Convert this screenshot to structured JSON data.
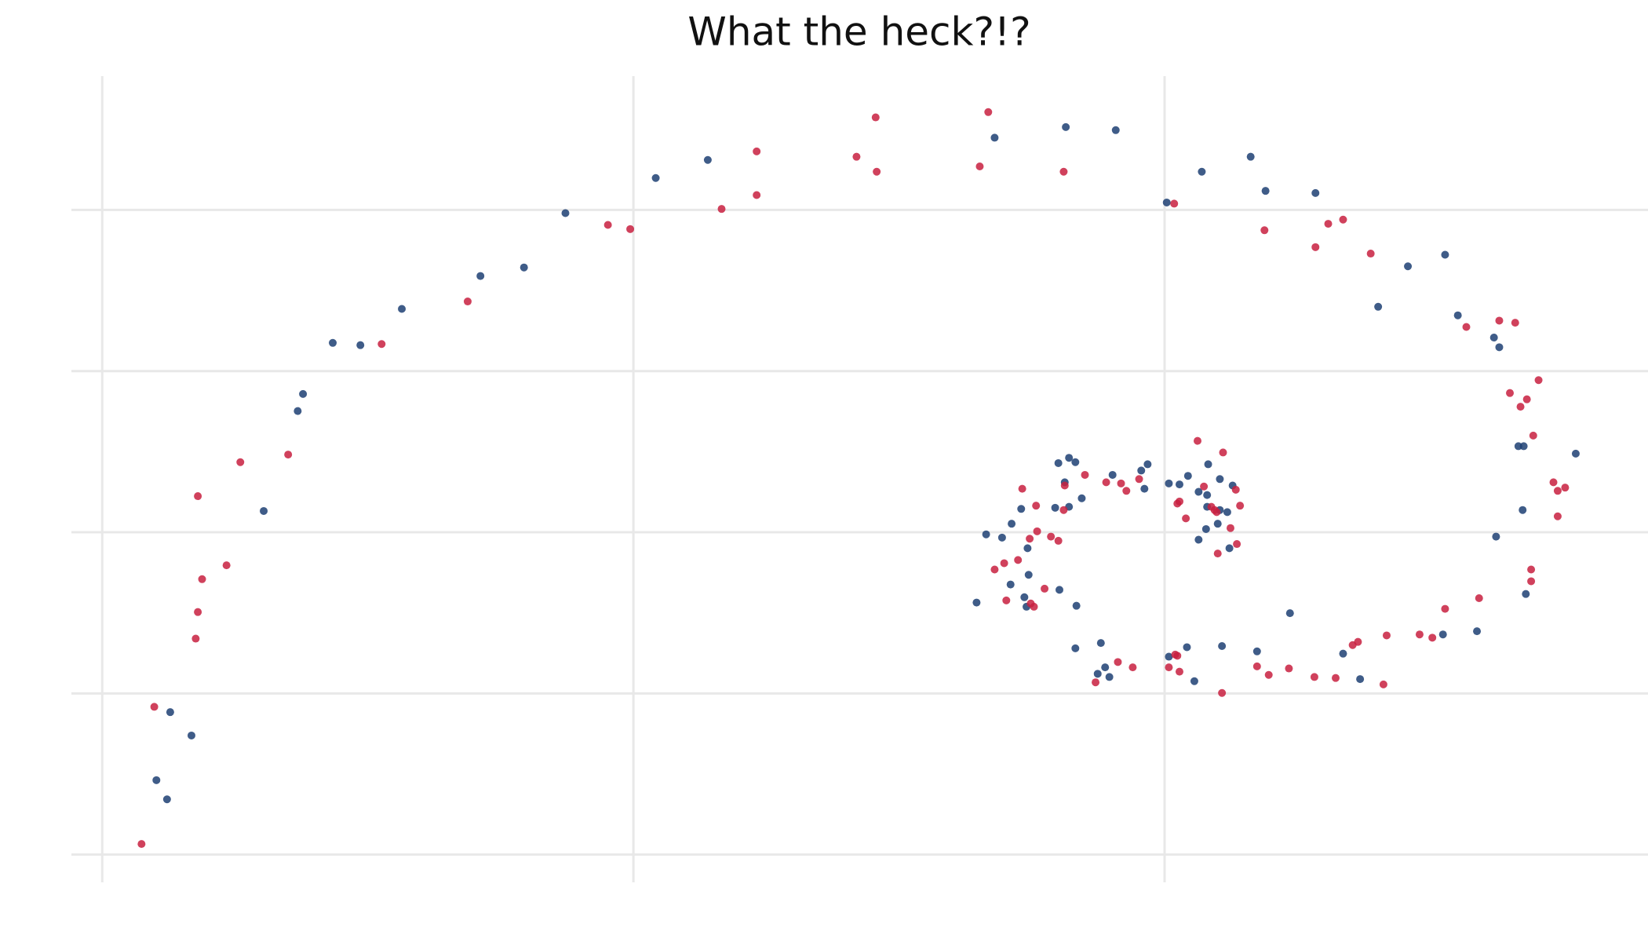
{
  "chart_data": {
    "type": "scatter",
    "title": "What the heck?!?",
    "xlim": [
      -5.8,
      291
    ],
    "ylim": [
      -17.2,
      483
    ],
    "xticks": [
      0,
      100,
      200
    ],
    "yticks": [
      0,
      100,
      200,
      300,
      400
    ],
    "grid": true,
    "series": [
      {
        "color": "#1d3f73",
        "x": [
          10.2,
          12.2,
          12.8,
          16.8,
          30.4,
          36.8,
          37.8,
          43.4,
          48.6,
          56.4,
          71.2,
          79.4,
          87.2,
          104.2,
          114.0,
          168.0,
          181.4,
          190.8,
          200.4,
          207.0,
          216.2,
          219.0,
          228.4,
          240.2,
          245.8,
          252.8,
          255.2,
          262.0,
          263.0,
          266.6,
          267.6,
          277.4,
          267.4,
          262.4,
          268.0,
          258.8,
          252.4,
          233.6,
          236.8,
          223.6,
          217.4,
          210.8,
          205.6,
          204.2,
          200.8,
          183.4,
          183.2,
          188.0,
          188.8,
          187.4,
          189.6,
          180.2,
          173.6,
          174.0,
          171.0,
          174.4,
          164.6,
          166.4,
          169.4,
          171.2,
          173.0,
          174.2,
          179.4,
          182.0,
          184.4,
          180.0,
          182.0,
          183.2,
          181.2,
          190.2,
          196.2,
          195.6,
          196.8,
          200.8,
          202.8,
          204.4,
          206.4,
          208.2,
          208.0,
          210.4,
          212.8,
          208.0,
          206.4,
          207.8,
          210.0,
          211.8,
          212.2,
          210.4
        ],
        "values": [
          46.2,
          34.3,
          88.4,
          73.9,
          213.2,
          275.2,
          285.8,
          317.5,
          316.1,
          338.6,
          359.0,
          364.3,
          398.0,
          419.8,
          431.0,
          444.8,
          451.4,
          449.5,
          404.6,
          423.7,
          433.0,
          411.8,
          410.5,
          339.9,
          365.0,
          372.2,
          334.6,
          320.8,
          314.8,
          253.4,
          253.4,
          248.8,
          213.8,
          197.3,
          161.7,
          138.6,
          136.6,
          124.7,
          108.9,
          149.8,
          126.1,
          129.4,
          107.6,
          128.7,
          122.8,
          154.4,
          128.0,
          131.3,
          116.2,
          112.2,
          110.2,
          164.3,
          159.7,
          153.8,
          167.6,
          173.6,
          156.4,
          198.7,
          196.7,
          205.3,
          214.5,
          190.1,
          215.2,
          215.8,
          221.1,
          242.9,
          246.2,
          243.5,
          231.0,
          235.6,
          227.0,
          238.3,
          242.2,
          230.3,
          229.7,
          235.0,
          225.1,
          242.2,
          223.1,
          233.0,
          229.0,
          215.8,
          195.4,
          202.0,
          205.3,
          212.5,
          190.1,
          213.8
        ]
      },
      {
        "color": "#c8203f",
        "x": [
          7.4,
          9.8,
          17.6,
          18.0,
          18.8,
          18.0,
          23.4,
          26.0,
          35.0,
          52.6,
          68.8,
          95.2,
          99.4,
          116.6,
          123.2,
          123.2,
          142.0,
          145.6,
          145.8,
          165.2,
          166.8,
          181.0,
          201.8,
          218.8,
          228.4,
          230.8,
          233.6,
          238.8,
          256.8,
          263.0,
          266.0,
          270.4,
          265.0,
          268.2,
          267.0,
          269.4,
          273.2,
          274.0,
          275.4,
          274.0,
          269.0,
          269.0,
          259.2,
          252.8,
          248.0,
          250.4,
          241.8,
          236.4,
          235.4,
          241.2,
          232.2,
          228.2,
          223.4,
          219.6,
          217.4,
          210.8,
          202.0,
          202.4,
          202.8,
          200.8,
          194.0,
          191.2,
          187.0,
          174.8,
          175.4,
          170.2,
          177.4,
          168.0,
          169.8,
          172.4,
          174.6,
          176.0,
          178.6,
          180.0,
          173.2,
          175.8,
          181.0,
          181.2,
          185.0,
          189.0,
          191.8,
          192.8,
          195.2,
          202.4,
          202.8,
          204.0,
          206.2,
          207.4,
          208.8,
          209.4,
          209.8,
          210.0,
          211.0,
          213.4,
          214.2,
          212.4,
          213.6
        ],
        "values": [
          6.6,
          91.7,
          134.0,
          150.5,
          170.9,
          222.4,
          179.5,
          243.5,
          248.2,
          316.8,
          343.2,
          390.7,
          388.1,
          400.6,
          409.2,
          436.3,
          433.0,
          457.4,
          423.7,
          427.0,
          460.7,
          423.7,
          403.9,
          387.4,
          376.9,
          391.4,
          394.0,
          372.9,
          327.4,
          331.3,
          330.0,
          294.4,
          286.4,
          282.5,
          277.9,
          260.0,
          231.0,
          225.7,
          227.7,
          209.9,
          176.9,
          169.6,
          159.1,
          152.5,
          136.6,
          134.6,
          136.0,
          132.0,
          130.0,
          105.6,
          109.6,
          110.2,
          115.5,
          111.5,
          116.8,
          100.3,
          124.1,
          123.4,
          113.5,
          116.2,
          116.2,
          119.5,
          106.9,
          155.8,
          153.8,
          157.7,
          165.0,
          176.9,
          180.8,
          182.8,
          196.0,
          200.6,
          197.3,
          194.7,
          227.0,
          216.5,
          213.8,
          229.0,
          235.6,
          231.0,
          230.3,
          225.7,
          233.0,
          217.8,
          219.1,
          208.6,
          256.7,
          228.4,
          215.8,
          213.8,
          212.5,
          186.8,
          249.5,
          226.4,
          216.5,
          202.6,
          192.7
        ]
      }
    ]
  }
}
